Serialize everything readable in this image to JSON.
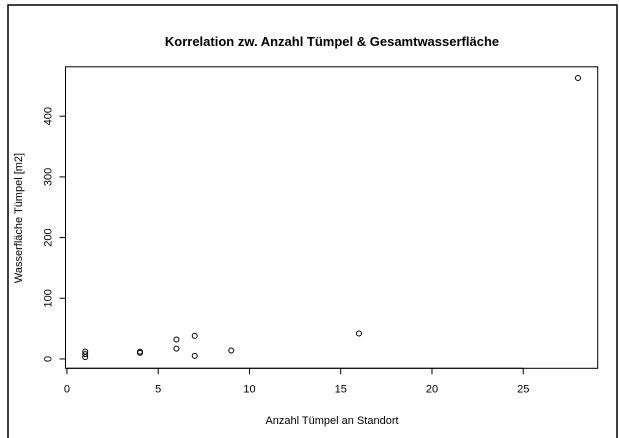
{
  "chart_data": {
    "type": "scatter",
    "title": "Korrelation zw. Anzahl Tümpel & Gesamtwasserfläche",
    "x_label": "Anzahl Tümpel an Standort",
    "y_label": "Wasserfläche Tümpel [m2]",
    "x": [
      1,
      1,
      1,
      4,
      4,
      6,
      6,
      7,
      7,
      9,
      16,
      28
    ],
    "y": [
      3,
      8,
      12,
      10,
      12,
      17,
      32,
      5,
      38,
      14,
      42,
      463
    ],
    "color": "#000000",
    "xlim": [
      -0.08,
      29.08
    ],
    "xticks": [
      0,
      5,
      10,
      15,
      20,
      25
    ],
    "ylim": [
      -15.4,
      481.4
    ],
    "yticks": [
      0,
      100,
      200,
      300,
      400
    ]
  }
}
